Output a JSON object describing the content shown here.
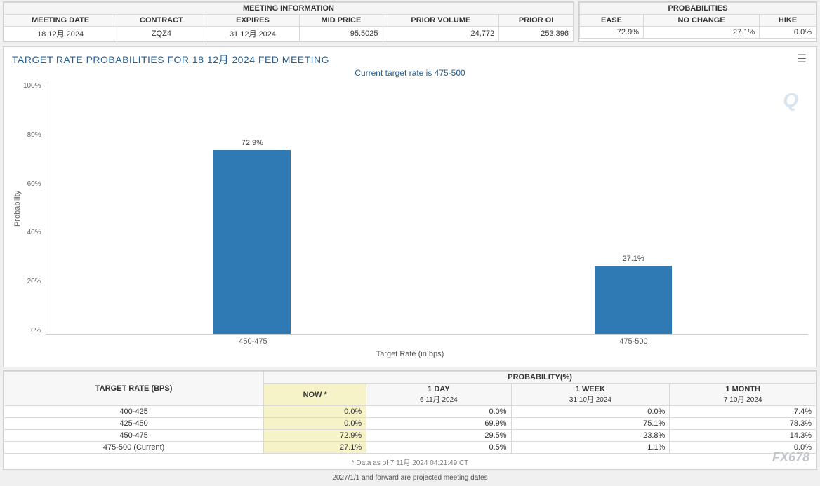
{
  "meeting_info": {
    "title": "MEETING INFORMATION",
    "columns": [
      "MEETING DATE",
      "CONTRACT",
      "EXPIRES",
      "MID PRICE",
      "PRIOR VOLUME",
      "PRIOR OI"
    ],
    "row": {
      "meeting_date": "18 12月 2024",
      "contract": "ZQZ4",
      "expires": "31 12月 2024",
      "mid_price": "95.5025",
      "prior_volume": "24,772",
      "prior_oi": "253,396"
    }
  },
  "probabilities": {
    "title": "PROBABILITIES",
    "columns": [
      "EASE",
      "NO CHANGE",
      "HIKE"
    ],
    "row": {
      "ease": "72.9%",
      "no_change": "27.1%",
      "hike": "0.0%"
    }
  },
  "chart": {
    "title": "TARGET RATE PROBABILITIES FOR 18 12月 2024 FED MEETING",
    "subtitle": "Current target rate is 475-500",
    "ylabel": "Probability",
    "xlabel": "Target Rate (in bps)",
    "ylim": [
      0,
      100
    ],
    "ytick_step": 20,
    "yticks": [
      "100%",
      "80%",
      "60%",
      "40%",
      "20%",
      "0%"
    ],
    "bar_color": "#2f7ab5",
    "background_color": "#ffffff",
    "bars": [
      {
        "category": "450-475",
        "label": "72.9%",
        "value": 72.9,
        "left_pct": 22
      },
      {
        "category": "475-500",
        "label": "27.1%",
        "value": 27.1,
        "left_pct": 72
      }
    ],
    "watermark_q": "Q",
    "watermark_fx": "FX678"
  },
  "history_table": {
    "target_header": "TARGET RATE (BPS)",
    "prob_header": "PROBABILITY(%)",
    "period_cols": [
      {
        "main": "NOW *",
        "sub": ""
      },
      {
        "main": "1 DAY",
        "sub": "6 11月 2024"
      },
      {
        "main": "1 WEEK",
        "sub": "31 10月 2024"
      },
      {
        "main": "1 MONTH",
        "sub": "7 10月 2024"
      }
    ],
    "rows": [
      {
        "rate": "400-425",
        "vals": [
          "0.0%",
          "0.0%",
          "0.0%",
          "7.4%"
        ]
      },
      {
        "rate": "425-450",
        "vals": [
          "0.0%",
          "69.9%",
          "75.1%",
          "78.3%"
        ]
      },
      {
        "rate": "450-475",
        "vals": [
          "72.9%",
          "29.5%",
          "23.8%",
          "14.3%"
        ]
      },
      {
        "rate": "475-500 (Current)",
        "vals": [
          "27.1%",
          "0.5%",
          "1.1%",
          "0.0%"
        ]
      }
    ],
    "footnote": "* Data as of 7 11月 2024 04:21:49 CT",
    "projection_note": "2027/1/1 and forward are projected meeting dates"
  }
}
